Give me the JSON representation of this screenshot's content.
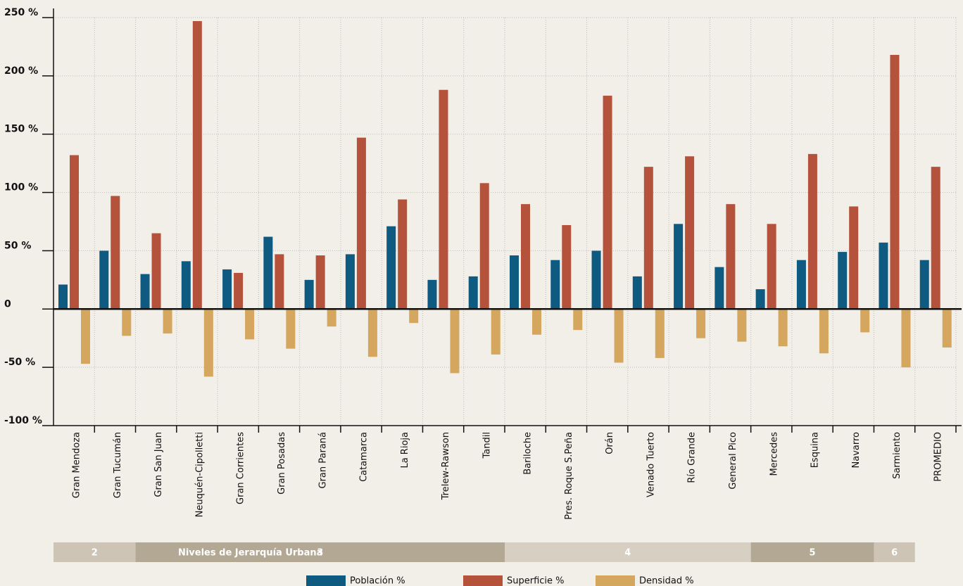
{
  "chart_data": {
    "type": "bar",
    "categories": [
      "Gran Mendoza",
      "Gran Tucumán",
      "Gran San Juan",
      "Neuquén-Cipolletti",
      "Gran Corrientes",
      "Gran Posadas",
      "Gran Paraná",
      "Catamarca",
      "La Rioja",
      "Trelew-Rawson",
      "Tandil",
      "Bariloche",
      "Pres. Roque S.Peña",
      "Orán",
      "Venado Tuerto",
      "Río Grande",
      "General Pico",
      "Mercedes",
      "Esquina",
      "Navarro",
      "Sarmiento",
      "PROMEDIO"
    ],
    "series": [
      {
        "name": "Población %",
        "color": "#0f5a80",
        "values": [
          21,
          50,
          30,
          41,
          34,
          62,
          25,
          47,
          71,
          25,
          28,
          46,
          42,
          50,
          28,
          73,
          36,
          17,
          42,
          49,
          57,
          42
        ]
      },
      {
        "name": "Superficie %",
        "color": "#b5523b",
        "values": [
          132,
          97,
          65,
          247,
          31,
          47,
          46,
          147,
          94,
          188,
          108,
          90,
          72,
          183,
          122,
          131,
          90,
          73,
          133,
          88,
          218,
          122
        ]
      },
      {
        "name": "Densidad %",
        "color": "#d4a65e",
        "values": [
          -47,
          -23,
          -21,
          -58,
          -26,
          -34,
          -15,
          -41,
          -12,
          -55,
          -39,
          -22,
          -18,
          -46,
          -42,
          -25,
          -28,
          -32,
          -38,
          -20,
          -50,
          -33
        ]
      }
    ],
    "ylim": [
      -100,
      250
    ],
    "yticks": [
      {
        "value": -100,
        "label": "-100 %"
      },
      {
        "value": -50,
        "label": "-50 %"
      },
      0,
      {
        "value": 50,
        "label": "50 %"
      },
      {
        "value": 100,
        "label": "100 %"
      },
      {
        "value": 150,
        "label": "150 %"
      },
      {
        "value": 200,
        "label": "200 %"
      },
      {
        "value": 250,
        "label": "250 %"
      }
    ],
    "grid": true,
    "group_title": "Niveles de Jerarquía Urbana",
    "groups": [
      {
        "label": "2",
        "count": 2,
        "color": "#cdc4b5"
      },
      {
        "label": "3",
        "count": 9,
        "color": "#b2a894"
      },
      {
        "label": "4",
        "count": 6,
        "color": "#d6cfc2"
      },
      {
        "label": "5",
        "count": 3,
        "color": "#b2a894"
      },
      {
        "label": "6",
        "count": 1,
        "color": "#cdc4b5"
      }
    ]
  }
}
